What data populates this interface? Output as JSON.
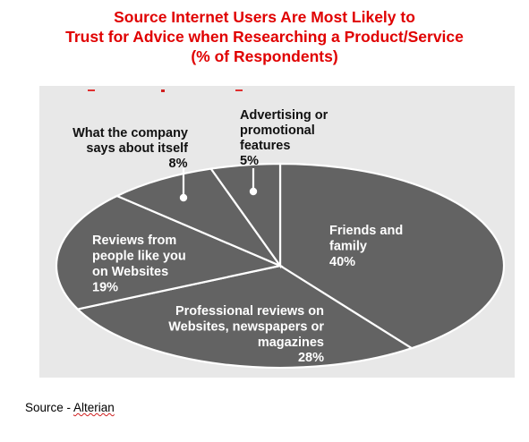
{
  "chart_data": {
    "type": "pie",
    "title": [
      "Source Internet Users Are Most Likely to",
      "Trust for Advice when Researching  a Product/Service",
      "(% of Respondents)"
    ],
    "slices": [
      {
        "label_lines": [
          "Friends and",
          "family"
        ],
        "value": 40,
        "value_label": "40%"
      },
      {
        "label_lines": [
          "Professional reviews on",
          "Websites, newspapers or",
          "magazines"
        ],
        "value": 28,
        "value_label": "28%"
      },
      {
        "label_lines": [
          "Reviews from",
          "people like you",
          "on Websites"
        ],
        "value": 19,
        "value_label": "19%"
      },
      {
        "label_lines": [
          "What the company",
          "says about itself"
        ],
        "value": 8,
        "value_label": "8%"
      },
      {
        "label_lines": [
          "Advertising or",
          "promotional",
          "features"
        ],
        "value": 5,
        "value_label": "5%"
      }
    ],
    "colors": {
      "panel": "#e8e8e8",
      "slice_fill": "#636363",
      "slice_edge": "#ffffff",
      "inside_text": "#ffffff",
      "outside_text": "#111111"
    }
  },
  "footer": {
    "prefix": "Source - ",
    "name": "Alterian"
  }
}
